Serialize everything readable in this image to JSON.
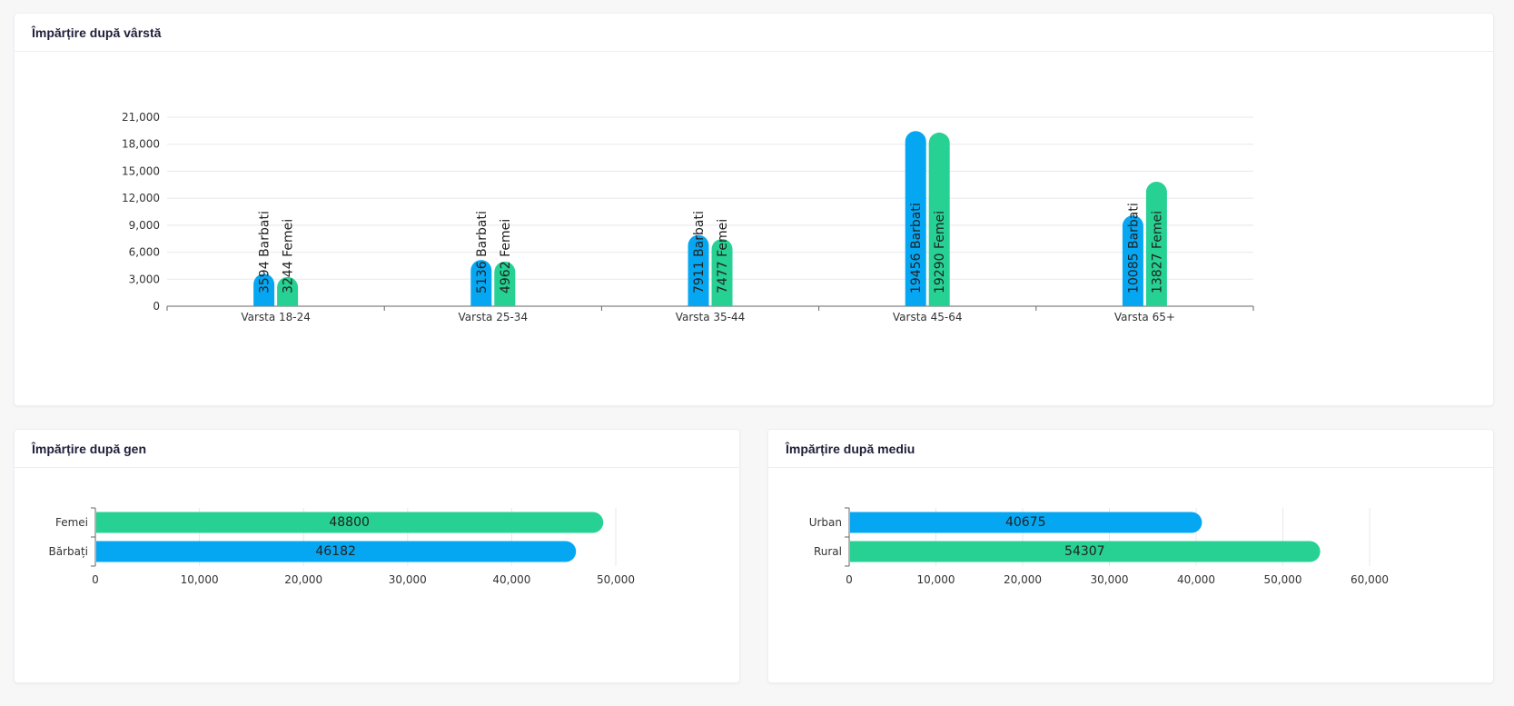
{
  "colors": {
    "barbati": "#06a7f2",
    "femei": "#26d193"
  },
  "cards": {
    "age_title": "Împărțire după vârstă",
    "gen_title": "Împărțire după gen",
    "mediu_title": "Împărțire după mediu"
  },
  "chart_data": [
    {
      "type": "bar",
      "orientation": "vertical",
      "title": "Împărțire după vârstă",
      "categories": [
        "Varsta 18-24",
        "Varsta 25-34",
        "Varsta 35-44",
        "Varsta 45-64",
        "Varsta 65+"
      ],
      "series": [
        {
          "name": "Barbati",
          "color": "#06a7f2",
          "values": [
            3594,
            5136,
            7911,
            19456,
            10085
          ]
        },
        {
          "name": "Femei",
          "color": "#26d193",
          "values": [
            3244,
            4962,
            7477,
            19290,
            13827
          ]
        }
      ],
      "data_labels": [
        [
          "3594 Barbati",
          "5136 Barbati",
          "7911 Barbati",
          "19456 Barbati",
          "10085 Barbati"
        ],
        [
          "3244 Femei",
          "4962 Femei",
          "7477 Femei",
          "19290 Femei",
          "13827 Femei"
        ]
      ],
      "ylim": [
        0,
        21000
      ],
      "yticks": [
        "0",
        "3,000",
        "6,000",
        "9,000",
        "12,000",
        "15,000",
        "18,000",
        "21,000"
      ],
      "grid": true
    },
    {
      "type": "bar",
      "orientation": "horizontal",
      "title": "Împărțire după gen",
      "categories": [
        "Femei",
        "Bărbați"
      ],
      "values": [
        48800,
        46182
      ],
      "data_labels": [
        "48800",
        "46182"
      ],
      "colors": [
        "#26d193",
        "#06a7f2"
      ],
      "xlim": [
        0,
        50000
      ],
      "xticks": [
        "0",
        "10,000",
        "20,000",
        "30,000",
        "40,000",
        "50,000"
      ],
      "grid": true
    },
    {
      "type": "bar",
      "orientation": "horizontal",
      "title": "Împărțire după mediu",
      "categories": [
        "Urban",
        "Rural"
      ],
      "values": [
        40675,
        54307
      ],
      "data_labels": [
        "40675",
        "54307"
      ],
      "colors": [
        "#06a7f2",
        "#26d193"
      ],
      "xlim": [
        0,
        60000
      ],
      "xticks": [
        "0",
        "10,000",
        "20,000",
        "30,000",
        "40,000",
        "50,000",
        "60,000"
      ],
      "grid": true
    }
  ]
}
